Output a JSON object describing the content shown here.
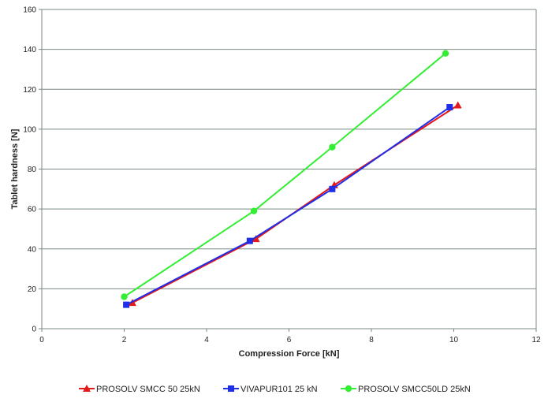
{
  "chart_data": {
    "type": "line",
    "title": "",
    "xlabel": "Compression Force [kN]",
    "ylabel": "Tablet hardness [N]",
    "xlim": [
      0,
      12
    ],
    "ylim": [
      0,
      160
    ],
    "xticks": [
      0,
      2,
      4,
      6,
      8,
      10,
      12
    ],
    "yticks": [
      0,
      20,
      40,
      60,
      80,
      100,
      120,
      140,
      160
    ],
    "grid": "horizontal",
    "legend_position": "bottom",
    "series": [
      {
        "name": "PROSOLV SMCC 50 25kN",
        "color": "#e31a1c",
        "marker": "triangle",
        "x": [
          2.2,
          5.2,
          7.1,
          10.1
        ],
        "y": [
          13,
          45,
          72,
          112
        ]
      },
      {
        "name": "VIVAPUR101 25 kN",
        "color": "#1f2ee8",
        "marker": "square",
        "x": [
          2.05,
          5.05,
          7.05,
          9.9
        ],
        "y": [
          12,
          44,
          70,
          111
        ]
      },
      {
        "name": "PROSOLV SMCC50LD 25kN",
        "color": "#33ee33",
        "marker": "circle",
        "x": [
          2.0,
          5.15,
          7.05,
          9.8
        ],
        "y": [
          16,
          59,
          91,
          138
        ]
      }
    ]
  }
}
